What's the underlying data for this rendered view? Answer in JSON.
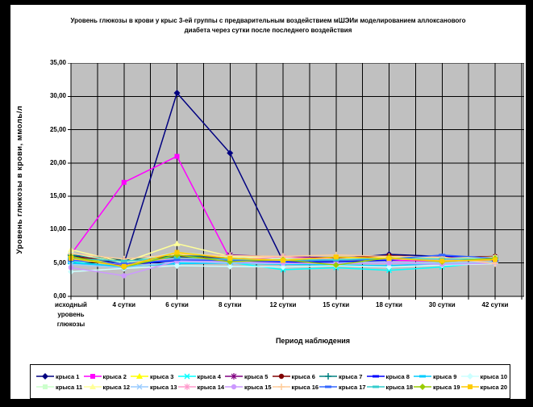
{
  "window": {
    "frame_color": "#000000",
    "chart_background": "#ffffff",
    "plot_background": "#c0c0c0",
    "gridline_color": "#000000"
  },
  "chart_data": {
    "type": "line",
    "title": "Уровень глюкозы в крови у крыс 3-ей группы с предварительным воздействием мШЭИи моделированием аллоксанового диабета через сутки после последнего воздействия",
    "title_lines": [
      "Уровень глюкозы в крови у крыс 3-ей группы с предварительным воздействием мШЭИи моделированием аллоксанового",
      "диабета через сутки после  последнего воздействия"
    ],
    "xlabel": "Период наблюдения",
    "ylabel": "Уровень глюкозы в крови, ммоль/л",
    "ylim": [
      0,
      35
    ],
    "y_tick_step": 5,
    "y_tick_labels": [
      "35,00",
      "30,00",
      "25,00",
      "20,00",
      "15,00",
      "10,00",
      "5,00",
      "0,00"
    ],
    "grid": true,
    "legend_position": "bottom",
    "categories": [
      "исходный уровень глюкозы",
      "4 сутки",
      "6 сутки",
      "8 сутки",
      "12 сутки",
      "15 сутки",
      "18 сутки",
      "30 сутки",
      "42 сутки"
    ],
    "series": [
      {
        "name": "крыса 1",
        "color": "#000080",
        "marker": "diamond",
        "values": [
          6.1,
          4.9,
          30.5,
          21.5,
          5.3,
          5.6,
          6.3,
          6.0,
          5.6
        ]
      },
      {
        "name": "крыса 2",
        "color": "#FF00FF",
        "marker": "square",
        "values": [
          6.3,
          17.1,
          21.0,
          5.6,
          5.2,
          5.5,
          5.4,
          5.3,
          5.5
        ]
      },
      {
        "name": "крыса 3",
        "color": "#FFFF00",
        "marker": "triangle",
        "values": [
          6.0,
          4.6,
          6.4,
          5.8,
          5.5,
          5.3,
          5.6,
          5.4,
          5.6
        ]
      },
      {
        "name": "крыса 4",
        "color": "#00FFFF",
        "marker": "x",
        "values": [
          5.2,
          4.4,
          5.0,
          5.1,
          4.0,
          4.3,
          3.9,
          4.4,
          5.2
        ]
      },
      {
        "name": "крыса 5",
        "color": "#800080",
        "marker": "star",
        "values": [
          5.8,
          5.2,
          6.0,
          6.2,
          5.9,
          5.8,
          6.0,
          5.7,
          5.8
        ]
      },
      {
        "name": "крыса 6",
        "color": "#800000",
        "marker": "circle",
        "values": [
          5.9,
          5.4,
          5.9,
          5.7,
          5.6,
          5.7,
          6.1,
          5.8,
          6.0
        ]
      },
      {
        "name": "крыса 7",
        "color": "#008080",
        "marker": "plus",
        "values": [
          6.2,
          5.5,
          6.1,
          5.9,
          5.7,
          5.6,
          5.8,
          5.7,
          5.7
        ]
      },
      {
        "name": "крыса 8",
        "color": "#0000FF",
        "marker": "dash",
        "values": [
          5.5,
          4.7,
          5.4,
          5.3,
          5.1,
          5.2,
          5.4,
          6.1,
          5.4
        ]
      },
      {
        "name": "крыса 9",
        "color": "#00CCFF",
        "marker": "dash",
        "values": [
          5.0,
          4.5,
          4.9,
          5.0,
          4.8,
          4.7,
          4.6,
          4.9,
          5.0
        ]
      },
      {
        "name": "крыса 10",
        "color": "#CCFFFF",
        "marker": "diamond",
        "values": [
          3.7,
          4.2,
          4.6,
          4.5,
          4.4,
          4.6,
          4.4,
          4.7,
          4.9
        ]
      },
      {
        "name": "крыса 11",
        "color": "#CCFFCC",
        "marker": "square",
        "values": [
          6.5,
          5.0,
          6.6,
          5.9,
          5.6,
          5.4,
          5.7,
          5.5,
          5.8
        ]
      },
      {
        "name": "крыса 12",
        "color": "#FFFF99",
        "marker": "triangle",
        "values": [
          7.0,
          5.1,
          7.9,
          6.0,
          5.8,
          5.6,
          5.9,
          5.7,
          5.9
        ]
      },
      {
        "name": "крыса 13",
        "color": "#99CCFF",
        "marker": "x",
        "values": [
          4.8,
          4.3,
          5.2,
          5.0,
          4.9,
          5.0,
          5.1,
          5.0,
          5.1
        ]
      },
      {
        "name": "крыса 14",
        "color": "#FF99CC",
        "marker": "star",
        "values": [
          5.6,
          4.8,
          5.7,
          5.5,
          5.9,
          5.5,
          5.6,
          5.4,
          5.5
        ]
      },
      {
        "name": "крыса 15",
        "color": "#CC99FF",
        "marker": "circle",
        "values": [
          4.3,
          3.1,
          5.3,
          5.2,
          5.0,
          4.9,
          5.0,
          4.8,
          5.0
        ]
      },
      {
        "name": "крыса 16",
        "color": "#FFCC99",
        "marker": "plus",
        "values": [
          6.4,
          5.6,
          6.3,
          6.1,
          6.0,
          6.2,
          6.0,
          5.9,
          4.9
        ]
      },
      {
        "name": "крыса 17",
        "color": "#3366FF",
        "marker": "dash",
        "values": [
          5.4,
          4.9,
          5.5,
          5.4,
          5.3,
          5.4,
          5.6,
          6.2,
          5.7
        ]
      },
      {
        "name": "крыса 18",
        "color": "#33CCCC",
        "marker": "dash",
        "values": [
          5.7,
          5.3,
          5.8,
          5.6,
          5.4,
          5.5,
          5.7,
          5.6,
          5.6
        ]
      },
      {
        "name": "крыса 19",
        "color": "#99CC00",
        "marker": "diamond",
        "values": [
          6.0,
          4.4,
          6.2,
          5.2,
          5.5,
          4.7,
          5.8,
          5.2,
          5.7
        ]
      },
      {
        "name": "крыса 20",
        "color": "#FFCC00",
        "marker": "square",
        "values": [
          5.7,
          4.5,
          6.6,
          5.7,
          5.4,
          5.9,
          5.7,
          5.3,
          5.5
        ]
      }
    ]
  }
}
